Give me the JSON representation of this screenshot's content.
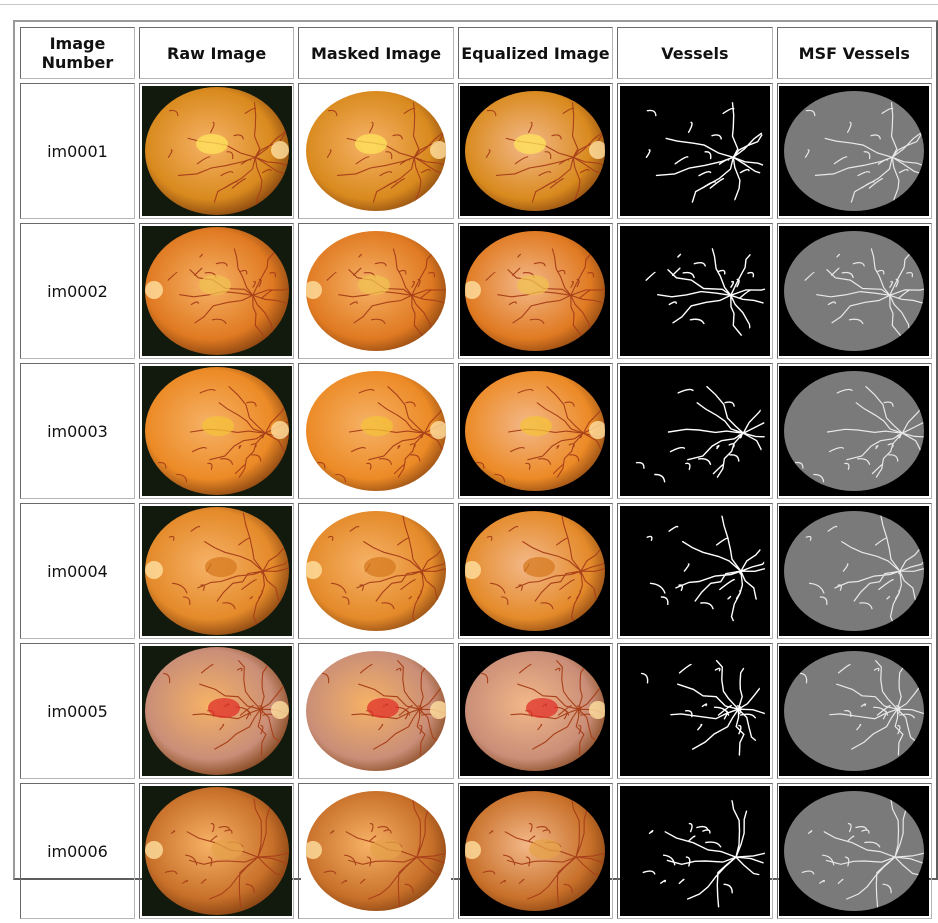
{
  "table": {
    "headers": [
      "Image Number",
      "Raw Image",
      "Masked Image",
      "Equalized Image",
      "Vessels",
      "MSF Vessels"
    ],
    "rows": [
      {
        "id": "im0001",
        "fundus": "#d98a1e",
        "accent": "#ffe45a"
      },
      {
        "id": "im0002",
        "fundus": "#e07a22",
        "accent": "#f0c050"
      },
      {
        "id": "im0003",
        "fundus": "#ec8a26",
        "accent": "#f4c23a"
      },
      {
        "id": "im0004",
        "fundus": "#e48a2a",
        "accent": "#d67a20"
      },
      {
        "id": "im0005",
        "fundus": "#c98e78",
        "accent": "#e0302a"
      },
      {
        "id": "im0006",
        "fundus": "#c8702a",
        "accent": "#e6a24a"
      }
    ]
  },
  "icons": [
    "retina-photo",
    "vessel-map"
  ]
}
